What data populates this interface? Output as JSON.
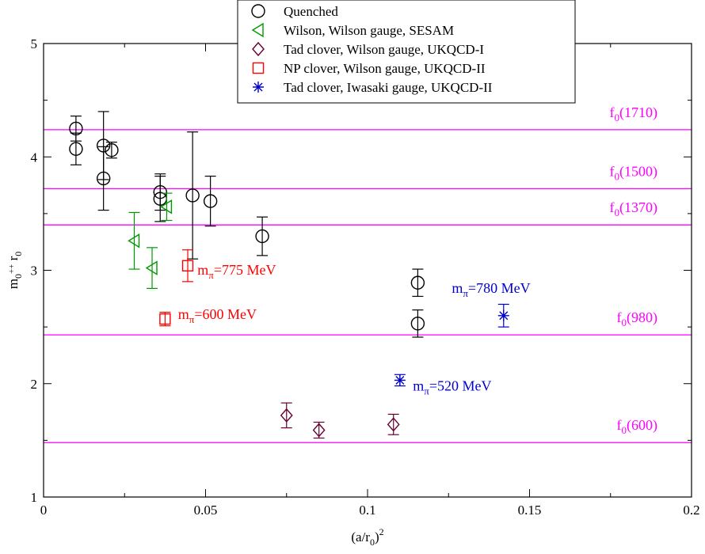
{
  "chart_data": {
    "type": "scatter",
    "xlabel": "(a/r0)^2",
    "ylabel": "m0++ r0",
    "xlim": [
      0,
      0.2
    ],
    "ylim": [
      1,
      5
    ],
    "x_ticks": [
      {
        "value": 0,
        "label": "0"
      },
      {
        "value": 0.05,
        "label": "0.05"
      },
      {
        "value": 0.1,
        "label": "0.1"
      },
      {
        "value": 0.15,
        "label": "0.15"
      },
      {
        "value": 0.2,
        "label": "0.2"
      }
    ],
    "y_ticks": [
      {
        "value": 1,
        "label": "1"
      },
      {
        "value": 2,
        "label": "2"
      },
      {
        "value": 3,
        "label": "3"
      },
      {
        "value": 4,
        "label": "4"
      },
      {
        "value": 5,
        "label": "5"
      }
    ],
    "grid": false,
    "legend_position": "top-center",
    "series": [
      {
        "name": "Quenched",
        "marker": "circle",
        "color": "#000000",
        "points": [
          {
            "x": 0.01,
            "y": 4.25,
            "err": 0.11
          },
          {
            "x": 0.01,
            "y": 4.07,
            "err": 0.14
          },
          {
            "x": 0.0185,
            "y": 4.1,
            "err": 0.3
          },
          {
            "x": 0.0185,
            "y": 3.81,
            "err": 0.28
          },
          {
            "x": 0.021,
            "y": 4.06,
            "err": 0.07
          },
          {
            "x": 0.036,
            "y": 3.69,
            "err": 0.16
          },
          {
            "x": 0.036,
            "y": 3.63,
            "err": 0.2
          },
          {
            "x": 0.046,
            "y": 3.66,
            "err": 0.56
          },
          {
            "x": 0.0515,
            "y": 3.61,
            "err": 0.22
          },
          {
            "x": 0.0675,
            "y": 3.3,
            "err": 0.17
          },
          {
            "x": 0.1155,
            "y": 2.89,
            "err": 0.12
          },
          {
            "x": 0.1155,
            "y": 2.53,
            "err": 0.12
          }
        ]
      },
      {
        "name": "Wilson, Wilson gauge, SESAM",
        "marker": "triangle-left",
        "color": "#009900",
        "points": [
          {
            "x": 0.028,
            "y": 3.26,
            "err": 0.25
          },
          {
            "x": 0.0335,
            "y": 3.02,
            "err": 0.18
          },
          {
            "x": 0.038,
            "y": 3.56,
            "err": 0.12
          }
        ]
      },
      {
        "name": "Tad clover, Wilson gauge, UKQCD-I",
        "marker": "diamond",
        "color": "#660033",
        "points": [
          {
            "x": 0.075,
            "y": 1.72,
            "err": 0.11
          },
          {
            "x": 0.085,
            "y": 1.59,
            "err": 0.07
          },
          {
            "x": 0.108,
            "y": 1.64,
            "err": 0.09
          }
        ]
      },
      {
        "name": "NP clover, Wilson gauge, UKQCD-II",
        "marker": "square",
        "color": "#ff0000",
        "points": [
          {
            "x": 0.0375,
            "y": 2.57,
            "err": 0.06
          },
          {
            "x": 0.0445,
            "y": 3.04,
            "err": 0.14
          }
        ]
      },
      {
        "name": "Tad clover, Iwasaki gauge, UKQCD-II",
        "marker": "star",
        "color": "#0000cc",
        "points": [
          {
            "x": 0.11,
            "y": 2.03,
            "err": 0.05
          },
          {
            "x": 0.142,
            "y": 2.6,
            "err": 0.1
          }
        ]
      }
    ],
    "reference_lines": [
      {
        "y": 4.24,
        "label": "f0(1710)",
        "color": "#ff00ff"
      },
      {
        "y": 3.72,
        "label": "f0(1500)",
        "color": "#ff00ff"
      },
      {
        "y": 3.4,
        "label": "f0(1370)",
        "color": "#ff00ff"
      },
      {
        "y": 2.43,
        "label": "f0(980)",
        "color": "#ff00ff"
      },
      {
        "y": 1.48,
        "label": "f0(600)",
        "color": "#ff00ff"
      }
    ],
    "annotations": [
      {
        "text": "mπ=775 MeV",
        "x": 0.0475,
        "y": 2.96,
        "color": "#ff0000"
      },
      {
        "text": "mπ=600 MeV",
        "x": 0.0415,
        "y": 2.57,
        "color": "#ff0000"
      },
      {
        "text": "mπ=780 MeV",
        "x": 0.126,
        "y": 2.8,
        "color": "#0000cc"
      },
      {
        "text": "mπ=520 MeV",
        "x": 0.114,
        "y": 1.94,
        "color": "#0000cc"
      }
    ]
  }
}
